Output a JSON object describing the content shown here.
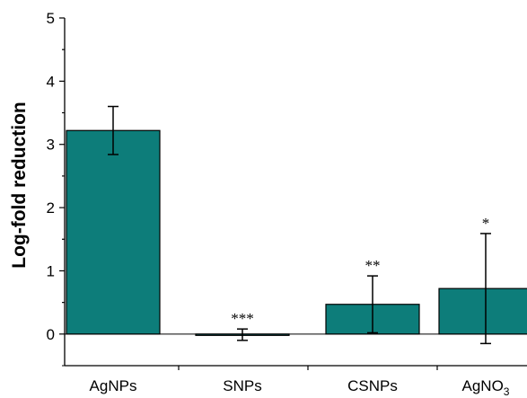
{
  "chart_data": {
    "type": "bar",
    "title": "",
    "xlabel": "",
    "ylabel": "Log-fold reduction",
    "categories": [
      "AgNPs",
      "SNPs",
      "CSNPs",
      "AgNO3"
    ],
    "category_display": [
      {
        "main": "AgNPs",
        "sub": ""
      },
      {
        "main": "SNPs",
        "sub": ""
      },
      {
        "main": "CSNPs",
        "sub": ""
      },
      {
        "main": "AgNO",
        "sub": "3"
      }
    ],
    "values": [
      3.22,
      -0.01,
      0.47,
      0.72
    ],
    "error_low": [
      2.84,
      -0.1,
      0.02,
      -0.15
    ],
    "error_high": [
      3.6,
      0.08,
      0.92,
      1.59
    ],
    "significance": [
      "",
      "***",
      "**",
      "*"
    ],
    "ylim": [
      -0.5,
      5
    ],
    "yticks": [
      0,
      1,
      2,
      3,
      4,
      5
    ],
    "bar_color": "#0d7d7a",
    "grid": false,
    "legend": "none"
  }
}
